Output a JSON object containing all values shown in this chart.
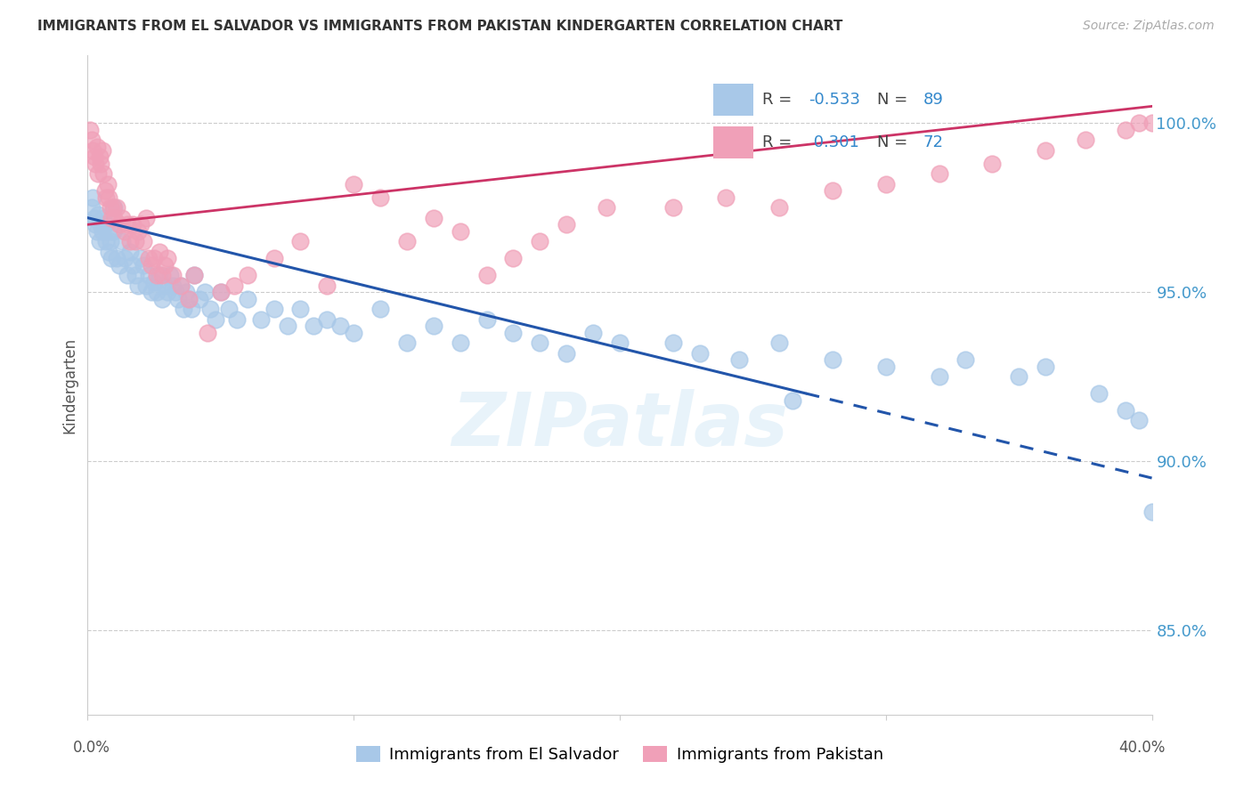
{
  "title": "IMMIGRANTS FROM EL SALVADOR VS IMMIGRANTS FROM PAKISTAN KINDERGARTEN CORRELATION CHART",
  "source": "Source: ZipAtlas.com",
  "ylabel": "Kindergarten",
  "y_ticks": [
    85.0,
    90.0,
    95.0,
    100.0
  ],
  "x_min": 0.0,
  "x_max": 40.0,
  "y_min": 82.5,
  "y_max": 102.0,
  "legend_blue_r": "-0.533",
  "legend_blue_n": "89",
  "legend_pink_r": "0.301",
  "legend_pink_n": "72",
  "blue_color": "#a8c8e8",
  "blue_line_color": "#2255aa",
  "pink_color": "#f0a0b8",
  "pink_line_color": "#cc3366",
  "watermark": "ZIPatlas",
  "blue_line_x0": 0.0,
  "blue_line_y0": 97.2,
  "blue_line_x1": 40.0,
  "blue_line_y1": 89.5,
  "blue_dash_start": 27.0,
  "pink_line_x0": 0.0,
  "pink_line_y0": 97.0,
  "pink_line_x1": 40.0,
  "pink_line_y1": 100.5,
  "blue_scatter_x": [
    0.15,
    0.2,
    0.25,
    0.3,
    0.35,
    0.4,
    0.45,
    0.5,
    0.55,
    0.6,
    0.65,
    0.7,
    0.75,
    0.8,
    0.85,
    0.9,
    0.95,
    1.0,
    1.1,
    1.2,
    1.3,
    1.4,
    1.5,
    1.6,
    1.7,
    1.8,
    1.9,
    2.0,
    2.1,
    2.2,
    2.3,
    2.4,
    2.5,
    2.6,
    2.7,
    2.8,
    2.9,
    3.0,
    3.1,
    3.2,
    3.3,
    3.4,
    3.5,
    3.6,
    3.7,
    3.8,
    3.9,
    4.0,
    4.2,
    4.4,
    4.6,
    4.8,
    5.0,
    5.3,
    5.6,
    6.0,
    6.5,
    7.0,
    7.5,
    8.0,
    8.5,
    9.0,
    9.5,
    10.0,
    11.0,
    12.0,
    13.0,
    14.0,
    15.0,
    16.0,
    17.0,
    18.0,
    19.0,
    20.0,
    22.0,
    23.0,
    24.5,
    26.0,
    28.0,
    30.0,
    32.0,
    33.0,
    35.0,
    36.0,
    38.0,
    39.0,
    39.5,
    40.0,
    26.5
  ],
  "blue_scatter_y": [
    97.5,
    97.8,
    97.2,
    97.0,
    96.8,
    97.3,
    96.5,
    97.0,
    96.8,
    97.2,
    97.0,
    96.5,
    96.8,
    96.2,
    96.5,
    96.0,
    96.8,
    97.5,
    96.0,
    95.8,
    96.5,
    96.0,
    95.5,
    96.2,
    95.8,
    95.5,
    95.2,
    96.0,
    95.8,
    95.2,
    95.5,
    95.0,
    95.3,
    95.0,
    95.5,
    94.8,
    95.2,
    95.0,
    95.5,
    95.2,
    95.0,
    94.8,
    95.2,
    94.5,
    95.0,
    94.8,
    94.5,
    95.5,
    94.8,
    95.0,
    94.5,
    94.2,
    95.0,
    94.5,
    94.2,
    94.8,
    94.2,
    94.5,
    94.0,
    94.5,
    94.0,
    94.2,
    94.0,
    93.8,
    94.5,
    93.5,
    94.0,
    93.5,
    94.2,
    93.8,
    93.5,
    93.2,
    93.8,
    93.5,
    93.5,
    93.2,
    93.0,
    93.5,
    93.0,
    92.8,
    92.5,
    93.0,
    92.5,
    92.8,
    92.0,
    91.5,
    91.2,
    88.5,
    91.8
  ],
  "pink_scatter_x": [
    0.1,
    0.15,
    0.2,
    0.25,
    0.3,
    0.35,
    0.4,
    0.45,
    0.5,
    0.55,
    0.6,
    0.65,
    0.7,
    0.75,
    0.8,
    0.85,
    0.9,
    0.95,
    1.0,
    1.1,
    1.2,
    1.3,
    1.4,
    1.5,
    1.6,
    1.7,
    1.8,
    1.9,
    2.0,
    2.1,
    2.2,
    2.3,
    2.4,
    2.5,
    2.6,
    2.7,
    2.8,
    2.9,
    3.0,
    3.2,
    3.5,
    3.8,
    4.0,
    4.5,
    5.0,
    5.5,
    6.0,
    7.0,
    8.0,
    9.0,
    10.0,
    11.0,
    12.0,
    13.0,
    14.0,
    15.0,
    16.0,
    17.0,
    18.0,
    19.5,
    22.0,
    24.0,
    26.0,
    28.0,
    30.0,
    32.0,
    34.0,
    36.0,
    37.5,
    39.0,
    39.5,
    40.0
  ],
  "pink_scatter_y": [
    99.8,
    99.5,
    99.2,
    99.0,
    98.8,
    99.3,
    98.5,
    99.0,
    98.8,
    99.2,
    98.5,
    98.0,
    97.8,
    98.2,
    97.8,
    97.5,
    97.2,
    97.5,
    97.2,
    97.5,
    97.0,
    97.2,
    96.8,
    97.0,
    96.5,
    97.0,
    96.5,
    96.8,
    97.0,
    96.5,
    97.2,
    96.0,
    95.8,
    96.0,
    95.5,
    96.2,
    95.5,
    95.8,
    96.0,
    95.5,
    95.2,
    94.8,
    95.5,
    93.8,
    95.0,
    95.2,
    95.5,
    96.0,
    96.5,
    95.2,
    98.2,
    97.8,
    96.5,
    97.2,
    96.8,
    95.5,
    96.0,
    96.5,
    97.0,
    97.5,
    97.5,
    97.8,
    97.5,
    98.0,
    98.2,
    98.5,
    98.8,
    99.2,
    99.5,
    99.8,
    100.0,
    100.0
  ]
}
